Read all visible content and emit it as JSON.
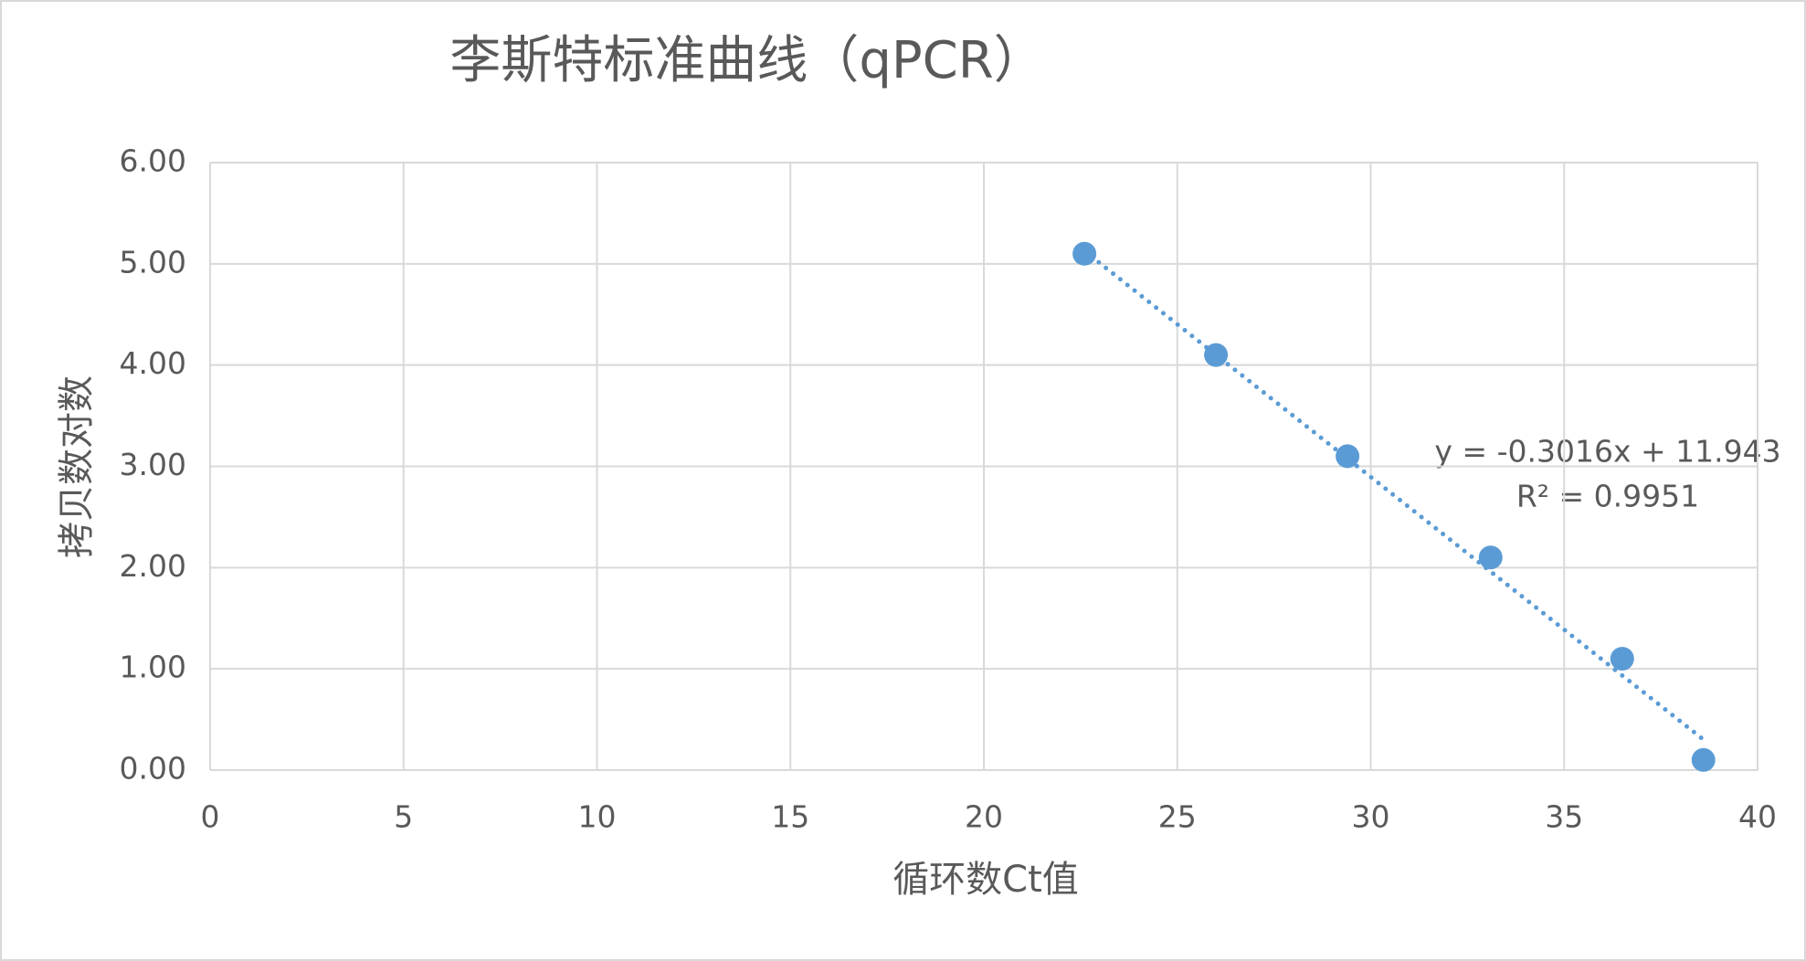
{
  "chart_data": {
    "type": "scatter",
    "title": "李斯特标准曲线（qPCR）",
    "x_label": "循环数Ct值",
    "y_label": "拷贝数对数",
    "series": [
      {
        "color": "#5b9bd5",
        "x": [
          22.6,
          26.0,
          29.4,
          33.1,
          36.5,
          38.6
        ],
        "values": [
          5.1,
          4.1,
          3.1,
          2.1,
          1.1,
          0.1
        ]
      }
    ],
    "trendline": {
      "slope": -0.3016,
      "intercept": 11.943,
      "label": "y = -0.3016x + 11.943",
      "r2_label": "R² = 0.9951"
    },
    "xlim": [
      0,
      40
    ],
    "xticks": [
      0,
      5,
      10,
      15,
      20,
      25,
      30,
      35,
      40
    ],
    "ylim": [
      0,
      6
    ],
    "yticks": [
      {
        "value": 0,
        "label": "0.00"
      },
      {
        "value": 1,
        "label": "1.00"
      },
      {
        "value": 2,
        "label": "2.00"
      },
      {
        "value": 3,
        "label": "3.00"
      },
      {
        "value": 4,
        "label": "4.00"
      },
      {
        "value": 5,
        "label": "5.00"
      },
      {
        "value": 6,
        "label": "6.00"
      }
    ],
    "grid": true
  }
}
